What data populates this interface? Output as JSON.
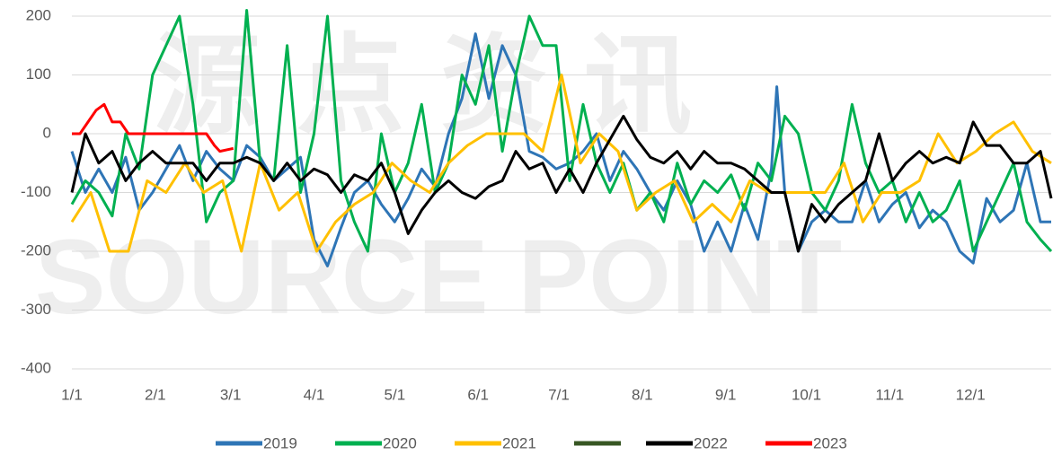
{
  "chart_data": {
    "type": "line",
    "watermark": [
      "源点资讯",
      "SOURCE POINT"
    ],
    "xlim": [
      0,
      364
    ],
    "ylim": [
      -400,
      200
    ],
    "yticks": [
      -400,
      -300,
      -200,
      -100,
      0,
      100,
      200
    ],
    "xticks": [
      {
        "value": 0,
        "label": "1/1"
      },
      {
        "value": 31,
        "label": "2/1"
      },
      {
        "value": 59,
        "label": "3/1"
      },
      {
        "value": 90,
        "label": "4/1"
      },
      {
        "value": 120,
        "label": "5/1"
      },
      {
        "value": 151,
        "label": "6/1"
      },
      {
        "value": 181,
        "label": "7/1"
      },
      {
        "value": 212,
        "label": "8/1"
      },
      {
        "value": 243,
        "label": "9/1"
      },
      {
        "value": 273,
        "label": "10/1"
      },
      {
        "value": 304,
        "label": "11/1"
      },
      {
        "value": 334,
        "label": "12/1"
      }
    ],
    "grid": true,
    "legend": "bottom",
    "series": [
      {
        "name": "2019",
        "color": "#2e75b6",
        "x": [
          0,
          5,
          10,
          15,
          20,
          25,
          30,
          35,
          40,
          45,
          50,
          55,
          60,
          65,
          70,
          75,
          80,
          85,
          90,
          95,
          100,
          105,
          110,
          115,
          120,
          125,
          130,
          135,
          140,
          145,
          150,
          155,
          160,
          165,
          170,
          175,
          180,
          185,
          190,
          195,
          200,
          205,
          210,
          215,
          220,
          225,
          230,
          235,
          240,
          245,
          250,
          255,
          260,
          262,
          265,
          270,
          275,
          280,
          285,
          290,
          295,
          300,
          305,
          310,
          315,
          320,
          325,
          330,
          335,
          340,
          345,
          350,
          355,
          360,
          364
        ],
        "values": [
          -30,
          -100,
          -60,
          -100,
          -40,
          -130,
          -100,
          -60,
          -20,
          -80,
          -30,
          -60,
          -80,
          -20,
          -40,
          -80,
          -60,
          -40,
          -180,
          -225,
          -160,
          -100,
          -80,
          -120,
          -150,
          -110,
          -60,
          -90,
          0,
          60,
          170,
          60,
          150,
          100,
          -30,
          -40,
          -60,
          -50,
          -30,
          0,
          -80,
          -30,
          -60,
          -100,
          -130,
          -80,
          -120,
          -200,
          -150,
          -200,
          -120,
          -180,
          -60,
          80,
          -100,
          -200,
          -150,
          -130,
          -150,
          -150,
          -80,
          -150,
          -120,
          -100,
          -160,
          -130,
          -150,
          -200,
          -220,
          -110,
          -150,
          -130,
          -50,
          -150,
          -150
        ]
      },
      {
        "name": "2020",
        "color": "#00b050",
        "x": [
          0,
          5,
          10,
          15,
          20,
          25,
          30,
          35,
          40,
          45,
          50,
          55,
          60,
          65,
          70,
          75,
          80,
          85,
          90,
          95,
          100,
          105,
          110,
          115,
          120,
          125,
          130,
          135,
          140,
          145,
          150,
          155,
          160,
          165,
          170,
          175,
          180,
          185,
          190,
          195,
          200,
          205,
          210,
          215,
          220,
          225,
          230,
          235,
          240,
          245,
          250,
          255,
          260,
          265,
          270,
          275,
          280,
          285,
          290,
          295,
          300,
          305,
          310,
          315,
          320,
          325,
          330,
          335,
          340,
          345,
          350,
          355,
          360,
          364
        ],
        "values": [
          -120,
          -80,
          -100,
          -140,
          0,
          -60,
          100,
          150,
          200,
          50,
          -150,
          -100,
          -80,
          210,
          -50,
          -80,
          150,
          -100,
          0,
          200,
          -80,
          -150,
          -200,
          0,
          -100,
          -50,
          50,
          -100,
          -50,
          100,
          50,
          150,
          -30,
          100,
          200,
          150,
          150,
          -80,
          50,
          -50,
          -100,
          -50,
          -130,
          -100,
          -150,
          -50,
          -120,
          -80,
          -100,
          -70,
          -130,
          -50,
          -80,
          30,
          0,
          -100,
          -130,
          -80,
          50,
          -50,
          -100,
          -80,
          -150,
          -100,
          -150,
          -130,
          -80,
          -200,
          -150,
          -100,
          -50,
          -150,
          -180,
          -200
        ]
      },
      {
        "name": "2021",
        "color": "#ffc000",
        "x": [
          0,
          7,
          14,
          21,
          28,
          35,
          42,
          49,
          56,
          63,
          70,
          77,
          84,
          91,
          98,
          105,
          112,
          119,
          126,
          133,
          140,
          147,
          154,
          161,
          168,
          175,
          182,
          189,
          196,
          203,
          210,
          217,
          224,
          231,
          238,
          245,
          252,
          259,
          266,
          273,
          280,
          287,
          294,
          301,
          308,
          315,
          322,
          329,
          336,
          343,
          350,
          357,
          364
        ],
        "values": [
          -150,
          -100,
          -200,
          -200,
          -80,
          -100,
          -50,
          -100,
          -80,
          -200,
          -50,
          -130,
          -100,
          -200,
          -150,
          -120,
          -100,
          -50,
          -80,
          -100,
          -50,
          -20,
          0,
          0,
          0,
          -30,
          100,
          -50,
          0,
          -30,
          -130,
          -100,
          -80,
          -150,
          -120,
          -150,
          -80,
          -100,
          -100,
          -100,
          -100,
          -50,
          -150,
          -100,
          -100,
          -80,
          0,
          -50,
          -30,
          0,
          20,
          -30,
          -50
        ]
      },
      {
        "name": null,
        "color": "#375623",
        "x": [],
        "values": []
      },
      {
        "name": "2022",
        "color": "#000000",
        "x": [
          0,
          5,
          10,
          15,
          20,
          25,
          30,
          35,
          40,
          45,
          50,
          55,
          60,
          65,
          70,
          75,
          80,
          85,
          90,
          95,
          100,
          105,
          110,
          115,
          120,
          125,
          130,
          135,
          140,
          145,
          150,
          155,
          160,
          165,
          170,
          175,
          180,
          185,
          190,
          195,
          200,
          205,
          210,
          215,
          220,
          225,
          230,
          235,
          240,
          245,
          250,
          255,
          260,
          265,
          270,
          275,
          280,
          285,
          290,
          295,
          300,
          305,
          310,
          315,
          320,
          325,
          330,
          335,
          340,
          345,
          350,
          355,
          360,
          364
        ],
        "values": [
          -100,
          0,
          -50,
          -30,
          -80,
          -50,
          -30,
          -50,
          -50,
          -50,
          -80,
          -50,
          -50,
          -40,
          -50,
          -80,
          -50,
          -80,
          -60,
          -70,
          -100,
          -70,
          -80,
          -50,
          -100,
          -170,
          -130,
          -100,
          -80,
          -100,
          -110,
          -90,
          -80,
          -30,
          -60,
          -50,
          -100,
          -60,
          -100,
          -50,
          -10,
          30,
          -10,
          -40,
          -50,
          -30,
          -60,
          -30,
          -50,
          -50,
          -60,
          -80,
          -100,
          -100,
          -200,
          -120,
          -150,
          -120,
          -100,
          -80,
          0,
          -80,
          -50,
          -30,
          -50,
          -40,
          -50,
          20,
          -20,
          -20,
          -50,
          -50,
          -30,
          -110
        ]
      },
      {
        "name": "2023",
        "color": "#ff0000",
        "x": [
          0,
          3,
          6,
          9,
          12,
          15,
          18,
          21,
          25,
          30,
          35,
          40,
          45,
          50,
          53,
          55,
          60
        ],
        "values": [
          0,
          0,
          20,
          40,
          50,
          20,
          20,
          0,
          0,
          0,
          0,
          0,
          0,
          0,
          -20,
          -30,
          -25
        ]
      }
    ]
  }
}
